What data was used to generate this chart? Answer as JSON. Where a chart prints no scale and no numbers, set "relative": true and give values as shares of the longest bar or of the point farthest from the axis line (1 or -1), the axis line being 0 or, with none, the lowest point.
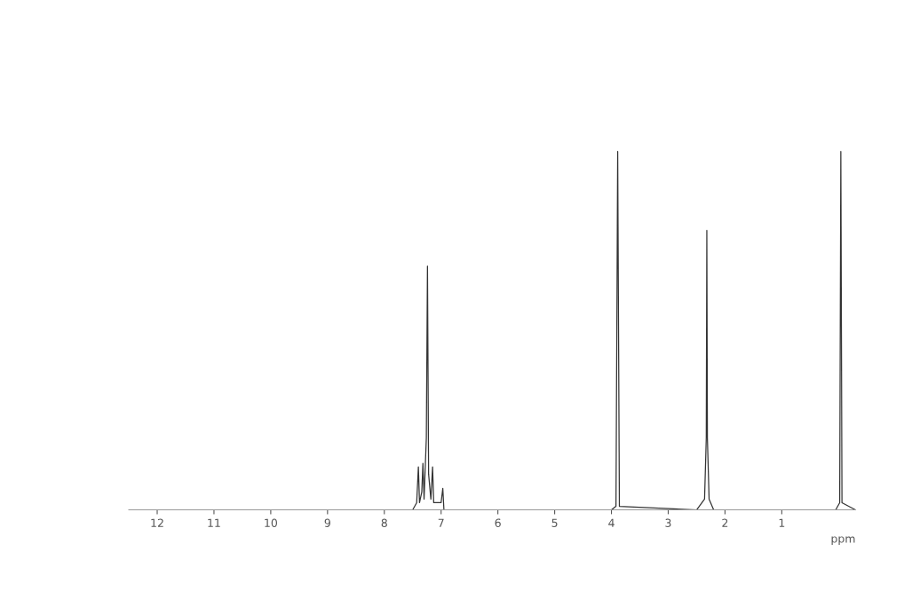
{
  "chart_data": {
    "type": "line",
    "relative": true,
    "xlabel": "ppm",
    "tick_labels": "x",
    "grid": false,
    "xlim": [
      12.5,
      -0.3
    ],
    "xticks": [
      12,
      11,
      10,
      9,
      8,
      7,
      6,
      5,
      4,
      3,
      2,
      1
    ],
    "series": [
      {
        "color": "#333333",
        "x": [
          12.5,
          7.5,
          7.43,
          7.4,
          7.38,
          7.34,
          7.32,
          7.3,
          7.26,
          7.24,
          7.22,
          7.18,
          7.15,
          7.13,
          7.0,
          6.97,
          6.95,
          4.0,
          3.92,
          3.89,
          3.86,
          2.5,
          2.36,
          2.33,
          2.32,
          2.31,
          2.28,
          2.2,
          0.05,
          -0.02,
          -0.04,
          -0.06,
          -0.3
        ],
        "values": [
          0,
          0,
          0.02,
          0.12,
          0.02,
          0.05,
          0.13,
          0.03,
          0.2,
          0.68,
          0.1,
          0.03,
          0.12,
          0.02,
          0.02,
          0.06,
          0,
          0,
          0.01,
          1,
          0.01,
          0,
          0.03,
          0.2,
          0.78,
          0.2,
          0.03,
          0,
          0,
          0.02,
          1,
          0.02,
          0
        ]
      }
    ]
  }
}
